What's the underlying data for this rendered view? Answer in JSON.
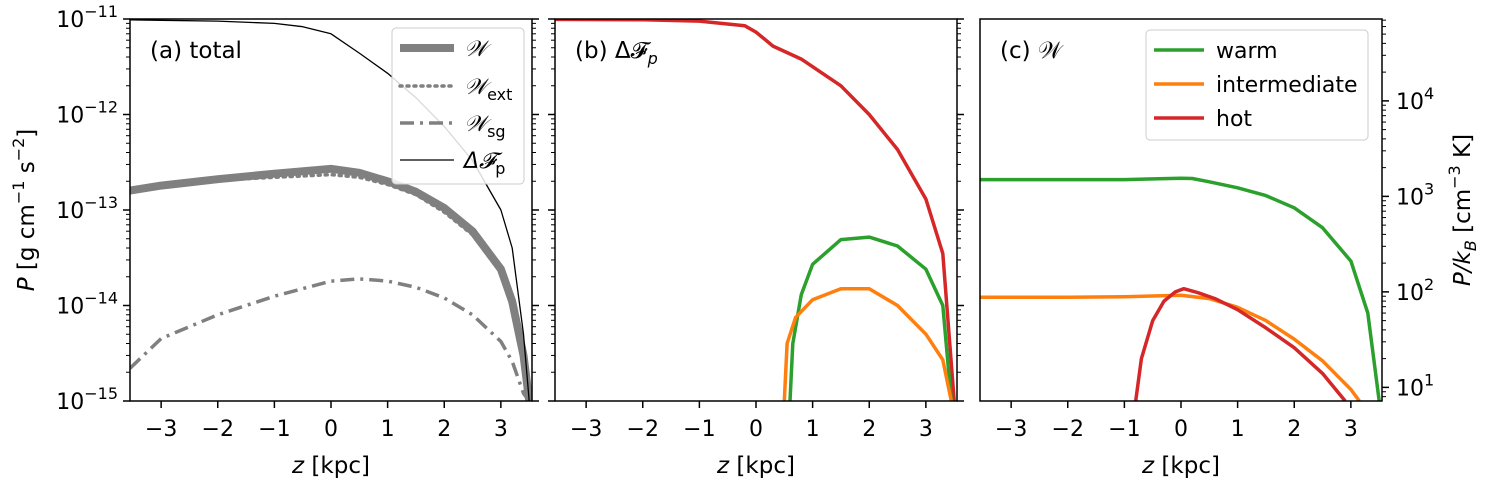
{
  "chart_data": [
    {
      "panel": "a",
      "type": "line",
      "title": "(a) total",
      "xlabel": "z [kpc]",
      "ylabel": "P [g cm−1 s−2]",
      "xlim": [
        -3.55,
        3.55
      ],
      "ylim": [
        1e-15,
        1e-11
      ],
      "yscale": "log",
      "x_ticks": [
        "−3",
        "−2",
        "−1",
        "0",
        "1",
        "2",
        "3"
      ],
      "y_ticks": [
        {
          "base": "10",
          "exp": "−11",
          "value": 1e-11
        },
        {
          "base": "10",
          "exp": "−12",
          "value": 1e-12
        },
        {
          "base": "10",
          "exp": "−13",
          "value": 1e-13
        },
        {
          "base": "10",
          "exp": "−14",
          "value": 1e-14
        },
        {
          "base": "10",
          "exp": "−15",
          "value": 1e-15
        }
      ],
      "legend": "upper right",
      "series": [
        {
          "name": "W",
          "style": "solid-thick",
          "color": "#808080",
          "x": [
            -3.55,
            -3,
            -2,
            -1,
            0,
            0.5,
            1,
            1.5,
            2,
            2.5,
            3,
            3.2,
            3.4,
            3.5
          ],
          "y": [
            1.6e-13,
            1.8e-13,
            2.1e-13,
            2.4e-13,
            2.7e-13,
            2.45e-13,
            2e-13,
            1.55e-13,
            1.05e-13,
            6e-14,
            2.4e-14,
            1.1e-14,
            3e-15,
            1e-15
          ]
        },
        {
          "name": "Wext",
          "style": "dotted",
          "color": "#808080",
          "x": [
            -3.55,
            -3,
            -2,
            -1,
            0,
            0.5,
            1,
            1.5,
            2,
            2.5,
            3,
            3.2,
            3.4,
            3.5
          ],
          "y": [
            1.6e-13,
            1.8e-13,
            2.05e-13,
            2.2e-13,
            2.35e-13,
            2.2e-13,
            1.85e-13,
            1.45e-13,
            9.5e-14,
            5.5e-14,
            2.2e-14,
            1e-14,
            2.8e-15,
            1e-15
          ]
        },
        {
          "name": "Wsg",
          "style": "dashdot",
          "color": "#808080",
          "x": [
            -3.55,
            -3,
            -2,
            -1,
            0,
            0.5,
            1,
            1.5,
            2,
            2.5,
            3,
            3.2,
            3.4,
            3.5
          ],
          "y": [
            2.2e-15,
            4.5e-15,
            8e-15,
            1.25e-14,
            1.8e-14,
            1.9e-14,
            1.8e-14,
            1.55e-14,
            1.2e-14,
            8e-15,
            4.2e-15,
            2.6e-15,
            1.2e-15,
            1e-15
          ]
        },
        {
          "name": "ΔFp",
          "style": "solid-thin",
          "color": "#000000",
          "x": [
            -3.55,
            -3,
            -2,
            -1,
            -0.5,
            0,
            0.5,
            1,
            1.5,
            2,
            2.5,
            3,
            3.2,
            3.4,
            3.5
          ],
          "y": [
            9.8e-12,
            9.7e-12,
            9.5e-12,
            9e-12,
            8.3e-12,
            7e-12,
            4.4e-12,
            2.7e-12,
            1.5e-12,
            7.5e-13,
            3.3e-13,
            1e-13,
            4e-14,
            5e-15,
            1e-15
          ]
        }
      ],
      "legend_entries": [
        {
          "symbol": "𝒲",
          "sub": ""
        },
        {
          "symbol": "𝒲",
          "sub": "ext"
        },
        {
          "symbol": "𝒲",
          "sub": "sg"
        },
        {
          "symbol": "Δ𝓕",
          "sub": "p"
        }
      ]
    },
    {
      "panel": "b",
      "type": "line",
      "title": "(b) Δ𝓕",
      "title_sub": "p",
      "xlabel": "z [kpc]",
      "xlim": [
        -3.55,
        3.55
      ],
      "ylim": [
        1e-15,
        1e-11
      ],
      "yscale": "log",
      "x_ticks": [
        "−3",
        "−2",
        "−1",
        "0",
        "1",
        "2",
        "3"
      ],
      "series": [
        {
          "name": "hot",
          "color": "#d62728",
          "x": [
            -3.55,
            -2,
            -1,
            -0.2,
            0,
            0.3,
            0.8,
            1.5,
            2,
            2.5,
            3,
            3.3,
            3.5
          ],
          "y": [
            9.9e-12,
            9.8e-12,
            9.5e-12,
            8.5e-12,
            7.3e-12,
            5.2e-12,
            3.8e-12,
            2e-12,
            1e-12,
            4.3e-13,
            1.3e-13,
            3.5e-14,
            1e-15
          ]
        },
        {
          "name": "warm",
          "color": "#2ca02c",
          "x": [
            0.6,
            0.65,
            0.8,
            1.0,
            1.5,
            2.0,
            2.5,
            3.0,
            3.3,
            3.45
          ],
          "y": [
            1e-15,
            4e-15,
            1.3e-14,
            2.7e-14,
            4.9e-14,
            5.2e-14,
            4.2e-14,
            2.4e-14,
            1e-14,
            1e-15
          ]
        },
        {
          "name": "intermediate",
          "color": "#ff7f0e",
          "x": [
            0.5,
            0.55,
            0.7,
            1.0,
            1.5,
            2.0,
            2.5,
            3.0,
            3.3,
            3.45
          ],
          "y": [
            1e-15,
            4e-15,
            7.5e-15,
            1.15e-14,
            1.5e-14,
            1.5e-14,
            1e-14,
            5e-15,
            2.7e-15,
            1e-15
          ]
        }
      ]
    },
    {
      "panel": "c",
      "type": "line",
      "title": "(c) 𝒲",
      "xlabel": "z [kpc]",
      "ylabel": "P/k",
      "ylabel_sub": "B",
      "ylabel_units": " [cm−3 K]",
      "xlim": [
        -3.55,
        3.55
      ],
      "ylim": [
        7.2,
        72000
      ],
      "yscale": "log",
      "y_axis_side": "right",
      "x_ticks": [
        "−3",
        "−2",
        "−1",
        "0",
        "1",
        "2",
        "3"
      ],
      "y_ticks": [
        {
          "base": "10",
          "exp": "4",
          "value": 10000
        },
        {
          "base": "10",
          "exp": "3",
          "value": 1000
        },
        {
          "base": "10",
          "exp": "2",
          "value": 100
        },
        {
          "base": "10",
          "exp": "1",
          "value": 10
        }
      ],
      "legend": "upper right",
      "series": [
        {
          "name": "warm",
          "color": "#2ca02c",
          "x": [
            -3.55,
            -2,
            -1,
            0,
            0.2,
            0.5,
            1,
            1.5,
            2,
            2.5,
            3,
            3.3,
            3.5
          ],
          "y": [
            1500,
            1500,
            1500,
            1550,
            1540,
            1420,
            1230,
            1020,
            760,
            470,
            210,
            60,
            7.2
          ]
        },
        {
          "name": "intermediate",
          "color": "#ff7f0e",
          "x": [
            -3.55,
            -2,
            -1,
            0,
            0.5,
            1,
            1.5,
            2,
            2.5,
            3,
            3.15
          ],
          "y": [
            88,
            88,
            89,
            92,
            85,
            69,
            50,
            32,
            19,
            9.5,
            7.2
          ]
        },
        {
          "name": "hot",
          "color": "#d62728",
          "x": [
            -0.8,
            -0.7,
            -0.5,
            -0.3,
            -0.1,
            0.05,
            0.3,
            0.6,
            1,
            1.5,
            2,
            2.5,
            2.9
          ],
          "y": [
            7.2,
            20,
            50,
            80,
            100,
            108,
            98,
            85,
            65,
            42,
            26,
            14,
            7.2
          ]
        }
      ],
      "legend_entries": [
        {
          "name": "warm",
          "color": "#2ca02c"
        },
        {
          "name": "intermediate",
          "color": "#ff7f0e"
        },
        {
          "name": "hot",
          "color": "#d62728"
        }
      ]
    }
  ]
}
